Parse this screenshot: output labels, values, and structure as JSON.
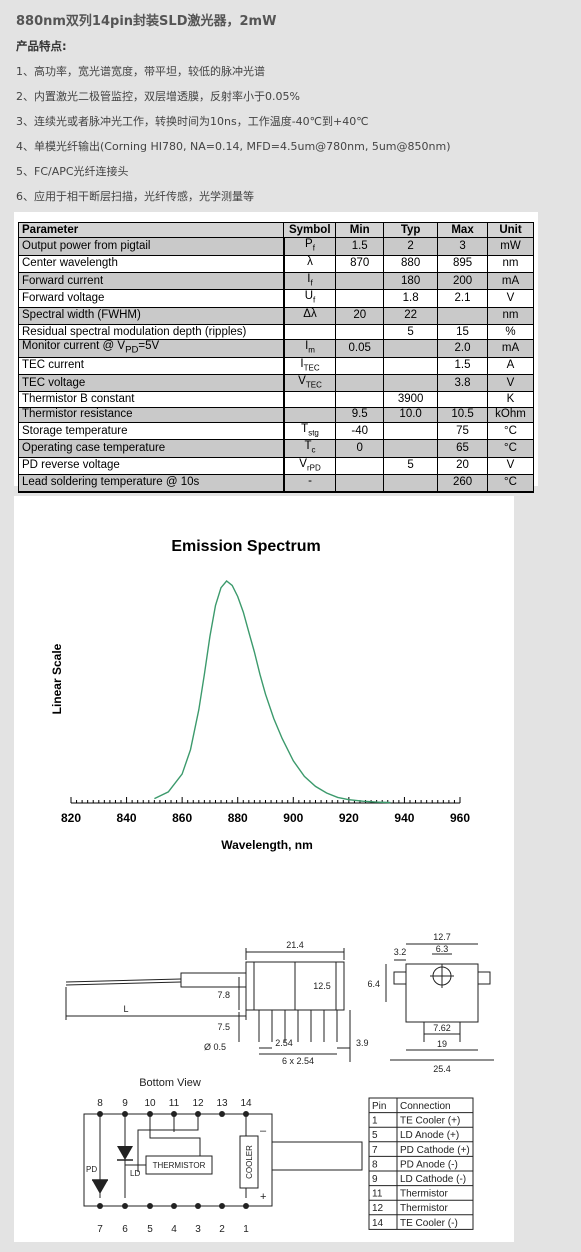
{
  "header": {
    "title": "880nm双列14pin封装SLD激光器，2mW",
    "features_title": "产品特点:",
    "features": [
      "1、高功率，宽光谱宽度，带平坦，较低的脉冲光谱",
      "2、内置激光二极管监控，双层增透膜，反射率小于0.05%",
      "3、连续光或者脉冲光工作，转换时间为10ns，工作温度-40℃到+40℃",
      "4、单模光纤输出(Corning HI780, NA=0.14, MFD=4.5um@780nm, 5um@850nm)",
      "5、FC/APC光纤连接头",
      "6、应用于相干断层扫描，光纤传感，光学测量等"
    ]
  },
  "spec_table": {
    "headers": [
      "Parameter",
      "Symbol",
      "Min",
      "Typ",
      "Max",
      "Unit"
    ],
    "rows": [
      {
        "param": "Output power from pigtail",
        "sym": "P",
        "sub": "f",
        "min": "1.5",
        "typ": "2",
        "max": "3",
        "unit": "mW"
      },
      {
        "param": "Center wavelength",
        "sym": "λ",
        "sub": "",
        "min": "870",
        "typ": "880",
        "max": "895",
        "unit": "nm"
      },
      {
        "param": "Forward current",
        "sym": "I",
        "sub": "f",
        "min": "",
        "typ": "180",
        "max": "200",
        "unit": "mA"
      },
      {
        "param": "Forward voltage",
        "sym": "U",
        "sub": "f",
        "min": "",
        "typ": "1.8",
        "max": "2.1",
        "unit": "V"
      },
      {
        "param": "Spectral width (FWHM)",
        "sym": "Δλ",
        "sub": "",
        "min": "20",
        "typ": "22",
        "max": "",
        "unit": "nm"
      },
      {
        "param": "Residual spectral modulation depth (ripples)",
        "sym": "",
        "sub": "",
        "min": "",
        "typ": "5",
        "max": "15",
        "unit": "%"
      },
      {
        "param": "Monitor current @ V",
        "param_sub": "PD",
        "param_tail": "=5V",
        "sym": "I",
        "sub": "m",
        "min": "0.05",
        "typ": "",
        "max": "2.0",
        "unit": "mA"
      },
      {
        "param": "TEC current",
        "sym": "I",
        "sub": "TEC",
        "min": "",
        "typ": "",
        "max": "1.5",
        "unit": "A"
      },
      {
        "param": "TEC voltage",
        "sym": "V",
        "sub": "TEC",
        "min": "",
        "typ": "",
        "max": "3.8",
        "unit": "V"
      },
      {
        "param": "Thermistor B constant",
        "sym": "",
        "sub": "",
        "min": "",
        "typ": "3900",
        "max": "",
        "unit": "K"
      },
      {
        "param": "Thermistor resistance",
        "sym": "",
        "sub": "",
        "min": "9.5",
        "typ": "10.0",
        "max": "10.5",
        "unit": "kOhm"
      },
      {
        "param": "Storage temperature",
        "sym": "T",
        "sub": "stg",
        "min": "-40",
        "typ": "",
        "max": "75",
        "unit": "°C"
      },
      {
        "param": "Operating case temperature",
        "sym": "T",
        "sub": "c",
        "min": "0",
        "typ": "",
        "max": "65",
        "unit": "°C"
      },
      {
        "param": "PD reverse voltage",
        "sym": "V",
        "sub": "rPD",
        "min": "",
        "typ": "5",
        "max": "20",
        "unit": "V"
      },
      {
        "param": "Lead soldering temperature @ 10s",
        "sym": "-",
        "sub": "",
        "min": "",
        "typ": "",
        "max": "260",
        "unit": "°C"
      }
    ]
  },
  "chart_data": {
    "type": "line",
    "title": "Emission Spectrum",
    "xlabel": "Wavelength, nm",
    "ylabel": "Linear Scale",
    "xlim": [
      820,
      960
    ],
    "ylim": [
      0,
      1
    ],
    "x_ticks": [
      820,
      840,
      860,
      880,
      900,
      920,
      940,
      960
    ],
    "grid": false,
    "series": [
      {
        "color": "#3c9a6c",
        "x": [
          850,
          855,
          860,
          863,
          866,
          868,
          870,
          872,
          874,
          876,
          878,
          880,
          882,
          884,
          886,
          888,
          890,
          893,
          896,
          900,
          904,
          908,
          912,
          916,
          920,
          925,
          930,
          935
        ],
        "y": [
          0.02,
          0.05,
          0.13,
          0.24,
          0.42,
          0.58,
          0.75,
          0.89,
          0.97,
          1.0,
          0.98,
          0.93,
          0.86,
          0.77,
          0.68,
          0.58,
          0.49,
          0.38,
          0.29,
          0.19,
          0.12,
          0.075,
          0.045,
          0.025,
          0.015,
          0.008,
          0.004,
          0.002
        ]
      }
    ]
  },
  "dimensions": {
    "length": "21.4",
    "height_body": "12.5",
    "fiber_h": "7.8",
    "pin_len": "7.5",
    "pin_dia": "Ø 0.5",
    "pitch": "2.54",
    "span": "6 x 2.54",
    "edge": "3.9",
    "fiber_label": "L",
    "side_top": "12.7",
    "side_a": "3.2",
    "side_b": "6.3",
    "side_h": "6.4",
    "side_pin": "7.62",
    "side_w1": "19",
    "side_w2": "25.4"
  },
  "pinout": {
    "bottom_view": "Bottom View",
    "top_pins": [
      "8",
      "9",
      "10",
      "11",
      "12",
      "13",
      "14"
    ],
    "bottom_pins": [
      "7",
      "6",
      "5",
      "4",
      "3",
      "2",
      "1"
    ],
    "labels": {
      "pd": "PD",
      "ld": "LD",
      "thermistor": "THERMISTOR",
      "cooler": "COOLER",
      "minus": "–",
      "plus": "+"
    },
    "table_headers": [
      "Pin",
      "Connection"
    ],
    "table_rows": [
      [
        "1",
        "TE Cooler (+)"
      ],
      [
        "5",
        "LD Anode (+)"
      ],
      [
        "7",
        "PD Cathode (+)"
      ],
      [
        "8",
        "PD Anode (-)"
      ],
      [
        "9",
        "LD Cathode (-)"
      ],
      [
        "11",
        "Thermistor"
      ],
      [
        "12",
        "Thermistor"
      ],
      [
        "14",
        "TE Cooler (-)"
      ]
    ]
  }
}
